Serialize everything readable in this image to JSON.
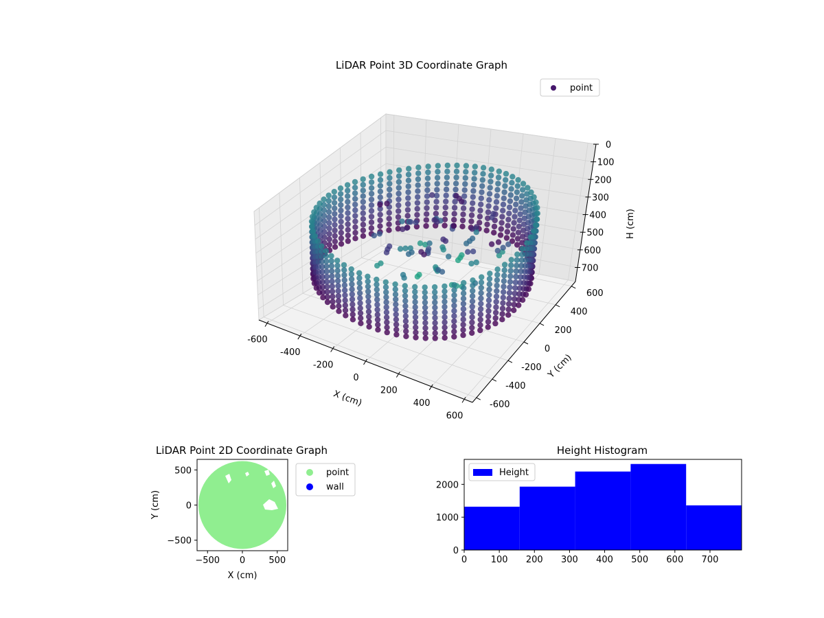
{
  "chart_data": [
    {
      "type": "scatter",
      "title": "LiDAR Point 3D Coordinate Graph",
      "xlabel": "X (cm)",
      "ylabel": "Y (cm)",
      "zlabel": "H (cm)",
      "xlim": [
        -650,
        650
      ],
      "ylim": [
        -650,
        650
      ],
      "zlim": [
        0,
        780
      ],
      "z_inverted": true,
      "xticks": [
        -600,
        -400,
        -200,
        0,
        200,
        400,
        600
      ],
      "yticks": [
        -600,
        -400,
        -200,
        0,
        200,
        400,
        600
      ],
      "zticks": [
        0,
        100,
        200,
        300,
        400,
        500,
        600,
        700
      ],
      "legend": {
        "position": "top-right",
        "entries": [
          {
            "label": "point",
            "color": "#46176c"
          }
        ]
      },
      "colormap": "viridis",
      "wall_radius": 600,
      "wall_height_range": [
        200,
        560
      ],
      "grid": true
    },
    {
      "type": "scatter",
      "title": "LiDAR Point 2D Coordinate Graph",
      "xlabel": "X (cm)",
      "ylabel": "Y (cm)",
      "xlim": [
        -650,
        650
      ],
      "ylim": [
        -650,
        650
      ],
      "xticks": [
        -500,
        0,
        500
      ],
      "yticks": [
        -500,
        0,
        500
      ],
      "legend": {
        "position": "outside-right",
        "entries": [
          {
            "label": "point",
            "color": "#90ee90"
          },
          {
            "label": "wall",
            "color": "#0000ff"
          }
        ]
      },
      "point_region": {
        "shape": "disc",
        "center": [
          0,
          0
        ],
        "radius": 630
      },
      "grid": false
    },
    {
      "type": "bar",
      "title": "Height Histogram",
      "xlabel": "",
      "ylabel": "",
      "bin_edges": [
        0,
        158,
        316,
        474,
        632,
        790
      ],
      "values": [
        1320,
        1930,
        2390,
        2620,
        1360
      ],
      "xlim": [
        0,
        790
      ],
      "ylim": [
        0,
        2760
      ],
      "xticks": [
        0,
        100,
        200,
        300,
        400,
        500,
        600,
        700
      ],
      "yticks": [
        0,
        1000,
        2000
      ],
      "color": "#0000ff",
      "legend": {
        "position": "top-left",
        "entries": [
          {
            "label": "Height",
            "color": "#0000ff"
          }
        ]
      },
      "grid": false
    }
  ]
}
